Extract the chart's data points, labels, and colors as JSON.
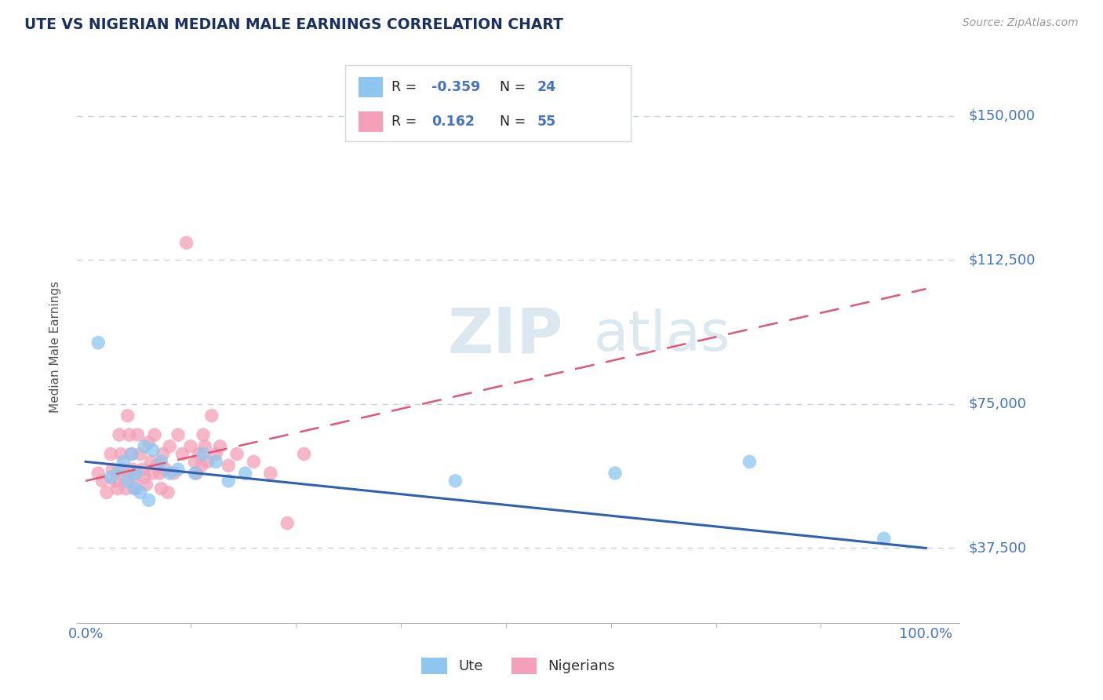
{
  "title": "UTE VS NIGERIAN MEDIAN MALE EARNINGS CORRELATION CHART",
  "source": "Source: ZipAtlas.com",
  "ylabel": "Median Male Earnings",
  "ytick_labels": [
    "$37,500",
    "$75,000",
    "$112,500",
    "$150,000"
  ],
  "ytick_values": [
    37500,
    75000,
    112500,
    150000
  ],
  "ymin": 18000,
  "ymax": 162000,
  "xmin": -0.01,
  "xmax": 1.04,
  "ute_color": "#8ec6ef",
  "nigerian_color": "#f4a0b8",
  "ute_line_color": "#3060b0",
  "nigerian_line_color": "#e05878",
  "title_color": "#1a3060",
  "axis_label_color": "#4472c4",
  "tick_label_color": "#4472c4",
  "grid_color": "#c0d0e0",
  "watermark_zip": "ZIP",
  "watermark_atlas": "atlas",
  "legend_box_color": "#ffffff",
  "legend_border_color": "#d0d8e8",
  "ute_points": [
    [
      0.015,
      91000
    ],
    [
      0.03,
      56000
    ],
    [
      0.04,
      58000
    ],
    [
      0.045,
      60000
    ],
    [
      0.05,
      55000
    ],
    [
      0.055,
      62000
    ],
    [
      0.058,
      53000
    ],
    [
      0.06,
      57000
    ],
    [
      0.065,
      52000
    ],
    [
      0.07,
      64000
    ],
    [
      0.075,
      50000
    ],
    [
      0.08,
      63000
    ],
    [
      0.09,
      60000
    ],
    [
      0.1,
      57000
    ],
    [
      0.11,
      58000
    ],
    [
      0.13,
      57000
    ],
    [
      0.14,
      62000
    ],
    [
      0.155,
      60000
    ],
    [
      0.17,
      55000
    ],
    [
      0.19,
      57000
    ],
    [
      0.44,
      55000
    ],
    [
      0.63,
      57000
    ],
    [
      0.79,
      60000
    ],
    [
      0.95,
      40000
    ]
  ],
  "nigerian_points": [
    [
      0.015,
      57000
    ],
    [
      0.02,
      55000
    ],
    [
      0.025,
      52000
    ],
    [
      0.03,
      62000
    ],
    [
      0.032,
      58000
    ],
    [
      0.035,
      55000
    ],
    [
      0.038,
      53000
    ],
    [
      0.04,
      67000
    ],
    [
      0.042,
      62000
    ],
    [
      0.044,
      58000
    ],
    [
      0.046,
      56000
    ],
    [
      0.048,
      53000
    ],
    [
      0.05,
      72000
    ],
    [
      0.052,
      67000
    ],
    [
      0.054,
      62000
    ],
    [
      0.056,
      58000
    ],
    [
      0.058,
      56000
    ],
    [
      0.06,
      53000
    ],
    [
      0.062,
      67000
    ],
    [
      0.065,
      62000
    ],
    [
      0.068,
      58000
    ],
    [
      0.07,
      56000
    ],
    [
      0.072,
      54000
    ],
    [
      0.075,
      65000
    ],
    [
      0.078,
      60000
    ],
    [
      0.08,
      57000
    ],
    [
      0.082,
      67000
    ],
    [
      0.085,
      59000
    ],
    [
      0.088,
      57000
    ],
    [
      0.09,
      53000
    ],
    [
      0.092,
      62000
    ],
    [
      0.095,
      58000
    ],
    [
      0.098,
      52000
    ],
    [
      0.1,
      64000
    ],
    [
      0.105,
      57000
    ],
    [
      0.11,
      67000
    ],
    [
      0.115,
      62000
    ],
    [
      0.12,
      117000
    ],
    [
      0.125,
      64000
    ],
    [
      0.13,
      60000
    ],
    [
      0.132,
      57000
    ],
    [
      0.135,
      62000
    ],
    [
      0.138,
      59000
    ],
    [
      0.14,
      67000
    ],
    [
      0.142,
      64000
    ],
    [
      0.145,
      60000
    ],
    [
      0.15,
      72000
    ],
    [
      0.155,
      62000
    ],
    [
      0.16,
      64000
    ],
    [
      0.17,
      59000
    ],
    [
      0.18,
      62000
    ],
    [
      0.2,
      60000
    ],
    [
      0.22,
      57000
    ],
    [
      0.24,
      44000
    ],
    [
      0.26,
      62000
    ]
  ],
  "ute_trend": [
    0.0,
    1.0,
    60000,
    37500
  ],
  "nigerian_trend": [
    0.0,
    1.0,
    55000,
    105000
  ]
}
